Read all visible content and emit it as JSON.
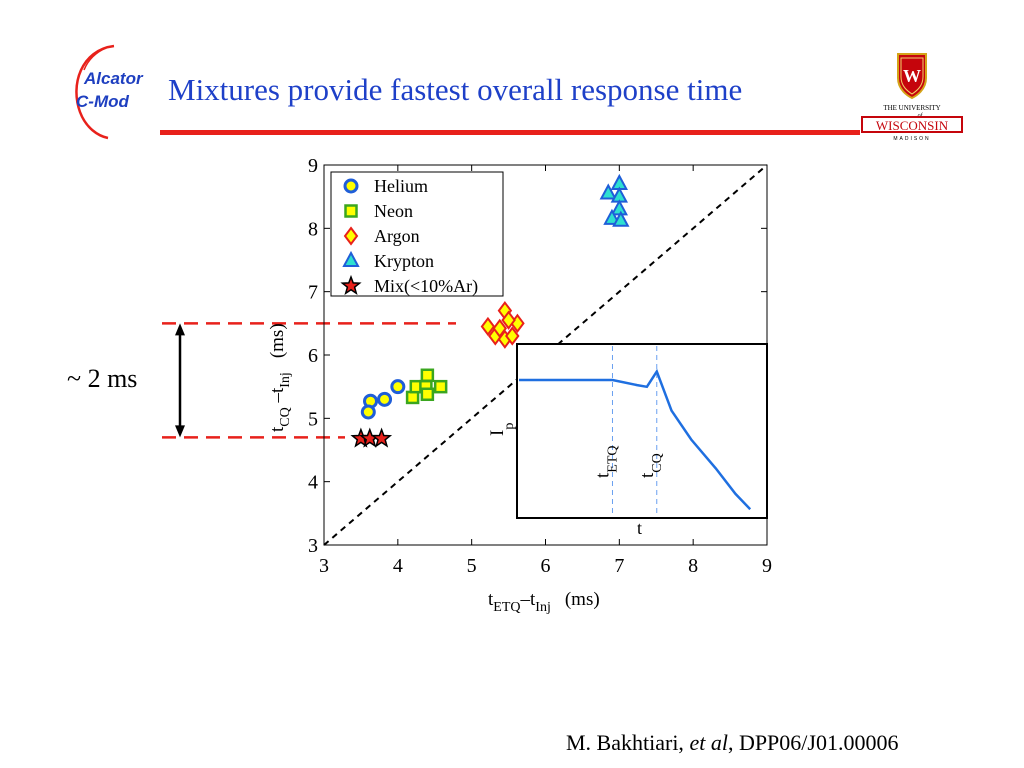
{
  "slide": {
    "title": "Mixtures provide fastest overall response time",
    "annotation": "~ 2 ms",
    "footer_author": "M. Bakhtiari, ",
    "footer_etal": "et al",
    "footer_ref": ", DPP06/J01.00006",
    "logo_left_line1": "Alcator",
    "logo_left_line2": "C-Mod",
    "logo_right_top": "THE UNIVERSITY",
    "logo_right_of": "of",
    "logo_right_main": "WISCONSIN",
    "logo_right_bottom": "MADISON",
    "colors": {
      "title": "#1e40c8",
      "rule": "#e8211b",
      "annotation_dash": "#e8211b"
    }
  },
  "chart_data": [
    {
      "type": "scatter",
      "xlabel": {
        "base": "t",
        "sub1": "ETQ",
        "mid": "–t",
        "sub2": "Inj",
        "unit": "(ms)"
      },
      "ylabel": {
        "base": "t",
        "sub1": "CQ",
        "mid": " –t",
        "sub2": "Inj",
        "unit": "(ms)"
      },
      "xlim": [
        3,
        9
      ],
      "ylim": [
        3,
        9
      ],
      "xticks": [
        3,
        4,
        5,
        6,
        7,
        8,
        9
      ],
      "yticks": [
        3,
        4,
        5,
        6,
        7,
        8,
        9
      ],
      "reference_line": {
        "style": "dashed",
        "from": [
          3,
          3
        ],
        "to": [
          9,
          9
        ]
      },
      "legend_position": "top-left",
      "series": [
        {
          "name": "Helium",
          "marker": "circle",
          "color": "#1f5ed8",
          "fill": "#ffff00",
          "points": [
            [
              3.63,
              5.27
            ],
            [
              3.6,
              5.1
            ],
            [
              3.82,
              5.3
            ],
            [
              4.0,
              5.5
            ]
          ]
        },
        {
          "name": "Neon",
          "marker": "square",
          "color": "#3aa61f",
          "fill": "#ffff00",
          "points": [
            [
              4.2,
              5.33
            ],
            [
              4.25,
              5.5
            ],
            [
              4.38,
              5.5
            ],
            [
              4.4,
              5.68
            ],
            [
              4.4,
              5.38
            ],
            [
              4.58,
              5.5
            ]
          ]
        },
        {
          "name": "Argon",
          "marker": "diamond",
          "color": "#e8211b",
          "fill": "#ffff00",
          "points": [
            [
              5.22,
              6.45
            ],
            [
              5.32,
              6.3
            ],
            [
              5.38,
              6.42
            ],
            [
              5.45,
              6.25
            ],
            [
              5.45,
              6.7
            ],
            [
              5.55,
              6.3
            ],
            [
              5.62,
              6.5
            ],
            [
              5.5,
              6.55
            ]
          ]
        },
        {
          "name": "Krypton",
          "marker": "triangle",
          "color": "#1f5ed8",
          "fill": "#2ee0d0",
          "points": [
            [
              6.85,
              8.55
            ],
            [
              7.0,
              8.7
            ],
            [
              7.0,
              8.5
            ],
            [
              7.0,
              8.3
            ],
            [
              6.9,
              8.15
            ],
            [
              7.02,
              8.12
            ]
          ]
        },
        {
          "name": "Mix(<10%Ar)",
          "marker": "star",
          "color": "#000000",
          "fill": "#e8211b",
          "points": [
            [
              3.5,
              4.68
            ],
            [
              3.62,
              4.68
            ],
            [
              3.78,
              4.68
            ]
          ]
        }
      ],
      "annotation_lines": [
        {
          "y": 6.5,
          "label_ref": "upper"
        },
        {
          "y": 4.7,
          "label_ref": "lower"
        }
      ]
    },
    {
      "type": "line",
      "title": "",
      "xlabel": "t",
      "ylabel": {
        "base": "I",
        "sub": "p"
      },
      "xlim": [
        0,
        100
      ],
      "ylim": [
        0,
        100
      ],
      "markers": [
        {
          "x": 38,
          "label_base": "t",
          "label_sub": "ETQ"
        },
        {
          "x": 56,
          "label_base": "t",
          "label_sub": "CQ"
        }
      ],
      "series": [
        {
          "color": "#1f6fe0",
          "x": [
            0,
            20,
            38,
            48,
            52,
            56,
            62,
            70,
            80,
            88,
            94
          ],
          "y": [
            80,
            80,
            80,
            77,
            76,
            85,
            62,
            45,
            28,
            13,
            4
          ]
        }
      ]
    }
  ]
}
